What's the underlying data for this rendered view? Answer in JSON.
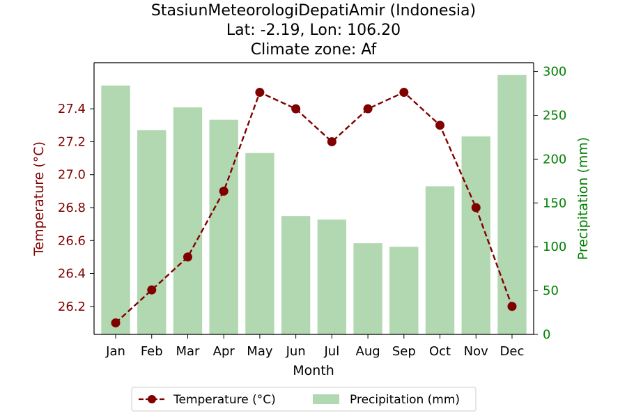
{
  "chart_data": {
    "type": "bar+line",
    "title_lines": [
      "StasiunMeteorologiDepatiAmir (Indonesia)",
      "Lat: -2.19, Lon: 106.20",
      "Climate zone: Af"
    ],
    "xlabel": "Month",
    "ylabel_left": "Temperature (°C)",
    "ylabel_right": "Precipitation (mm)",
    "categories": [
      "Jan",
      "Feb",
      "Mar",
      "Apr",
      "May",
      "Jun",
      "Jul",
      "Aug",
      "Sep",
      "Oct",
      "Nov",
      "Dec"
    ],
    "series": [
      {
        "name": "Temperature (°C)",
        "type": "line",
        "axis": "left",
        "values": [
          26.1,
          26.3,
          26.5,
          26.9,
          27.5,
          27.4,
          27.2,
          27.4,
          27.5,
          27.3,
          26.8,
          26.2
        ]
      },
      {
        "name": "Precipitation (mm)",
        "type": "bar",
        "axis": "right",
        "values": [
          284,
          233,
          259,
          245,
          207,
          135,
          131,
          104,
          100,
          169,
          226,
          296
        ]
      }
    ],
    "ylim_left": [
      26.03,
      27.68
    ],
    "ylim_right": [
      0,
      310
    ],
    "yticks_left": [
      "26.2",
      "26.4",
      "26.6",
      "26.8",
      "27.0",
      "27.2",
      "27.4"
    ],
    "yticks_right": [
      "0",
      "50",
      "100",
      "150",
      "200",
      "250",
      "300"
    ],
    "legend_placement": "bottom-center",
    "colors": {
      "temperature": "#800000",
      "precipitation": "#b2d8b2",
      "right_axis": "#008000",
      "axis": "#000000"
    }
  }
}
